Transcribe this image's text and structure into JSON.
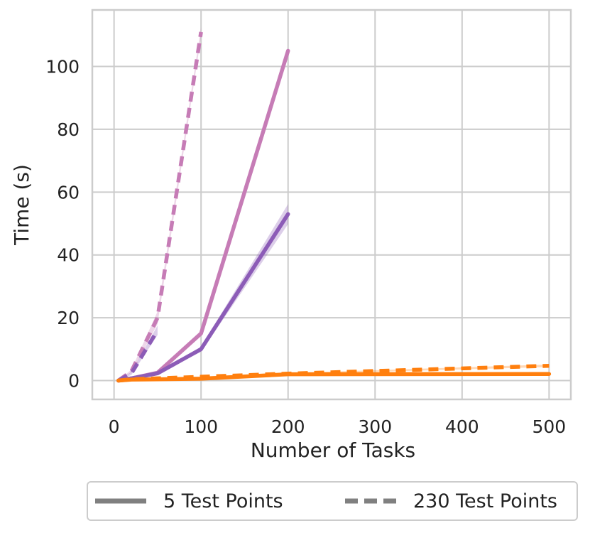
{
  "chart_data": {
    "type": "line",
    "xlabel": "Number of Tasks",
    "ylabel": "Time (s)",
    "xlim": [
      -25,
      525
    ],
    "ylim": [
      -6,
      118
    ],
    "xticks": [
      0,
      100,
      200,
      300,
      400,
      500
    ],
    "yticks": [
      0,
      20,
      40,
      60,
      80,
      100
    ],
    "grid": true,
    "legend_placement": "bottom-center, below plot",
    "series": [
      {
        "color": "#c67cb6",
        "style": "solid",
        "x": [
          5,
          20,
          50,
          100,
          200
        ],
        "y": [
          0,
          0.7,
          2.5,
          15,
          105
        ],
        "band": [
          0,
          0,
          0.3,
          0.8,
          1.0
        ]
      },
      {
        "color": "#c67cb6",
        "style": "dashed",
        "x": [
          5,
          20,
          50,
          100
        ],
        "y": [
          0,
          3,
          20,
          111
        ],
        "band": [
          0,
          0.5,
          2.0,
          1.5
        ]
      },
      {
        "color": "#8c5cb7",
        "style": "solid",
        "x": [
          5,
          20,
          50,
          100,
          200
        ],
        "y": [
          0,
          0.7,
          2.3,
          10,
          53
        ],
        "band": [
          0,
          0,
          0.3,
          0.8,
          3.2
        ]
      },
      {
        "color": "#8c5cb7",
        "style": "dashed",
        "x": [
          5,
          20,
          50
        ],
        "y": [
          0,
          2.3,
          16
        ],
        "band": [
          0,
          0.5,
          1.5
        ]
      },
      {
        "color": "#ff7f0e",
        "style": "solid",
        "x": [
          5,
          20,
          50,
          100,
          200,
          500
        ],
        "y": [
          0,
          0.3,
          0.4,
          0.6,
          2.0,
          2.1
        ],
        "band": [
          0,
          0,
          0,
          0.1,
          0.2,
          0.2
        ]
      },
      {
        "color": "#ff7f0e",
        "style": "dashed",
        "x": [
          5,
          20,
          50,
          100,
          200,
          500
        ],
        "y": [
          0,
          0.4,
          0.7,
          1.2,
          2.2,
          4.7
        ],
        "band": [
          0,
          0,
          0.1,
          0.1,
          0.2,
          0.4
        ]
      }
    ],
    "legend": [
      {
        "label": "5 Test Points",
        "style": "solid",
        "color": "#808080"
      },
      {
        "label": "230 Test Points",
        "style": "dashed",
        "color": "#808080"
      }
    ]
  }
}
